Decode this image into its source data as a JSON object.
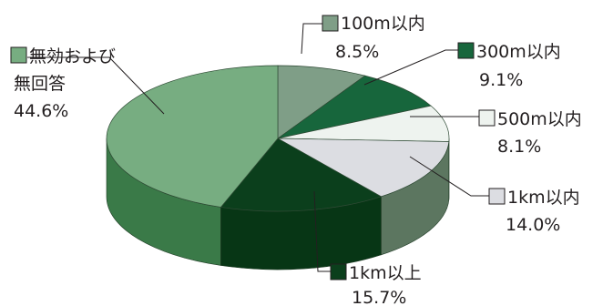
{
  "chart_data": {
    "type": "pie",
    "title": "",
    "categories": [
      "100m以内",
      "300m以内",
      "500m以内",
      "1km以内",
      "1km以上",
      "無効および無回答"
    ],
    "values": [
      8.5,
      9.1,
      8.1,
      14.0,
      15.7,
      44.6
    ],
    "unit": "%",
    "labels": [
      {
        "line1": "100m以内",
        "line2": "",
        "value": "8.5%"
      },
      {
        "line1": "300m以内",
        "line2": "",
        "value": "9.1%"
      },
      {
        "line1": "500m以内",
        "line2": "",
        "value": "8.1%"
      },
      {
        "line1": "1km以内",
        "line2": "",
        "value": "14.0%"
      },
      {
        "line1": "1km以上",
        "line2": "",
        "value": "15.7%"
      },
      {
        "line1": "無効および",
        "line2": "無回答",
        "value": "44.6%"
      }
    ],
    "colors": [
      "#7f9e87",
      "#17663c",
      "#eef3ef",
      "#dcdde2",
      "#0b3f1c",
      "#77ad81"
    ],
    "side_colors": [
      "#5f7e66",
      "#0f4d2b",
      "#c4c7c4",
      "#5c7660",
      "#073615",
      "#3a7a48"
    ],
    "legend": "labels-around-slices",
    "three_d": true
  }
}
